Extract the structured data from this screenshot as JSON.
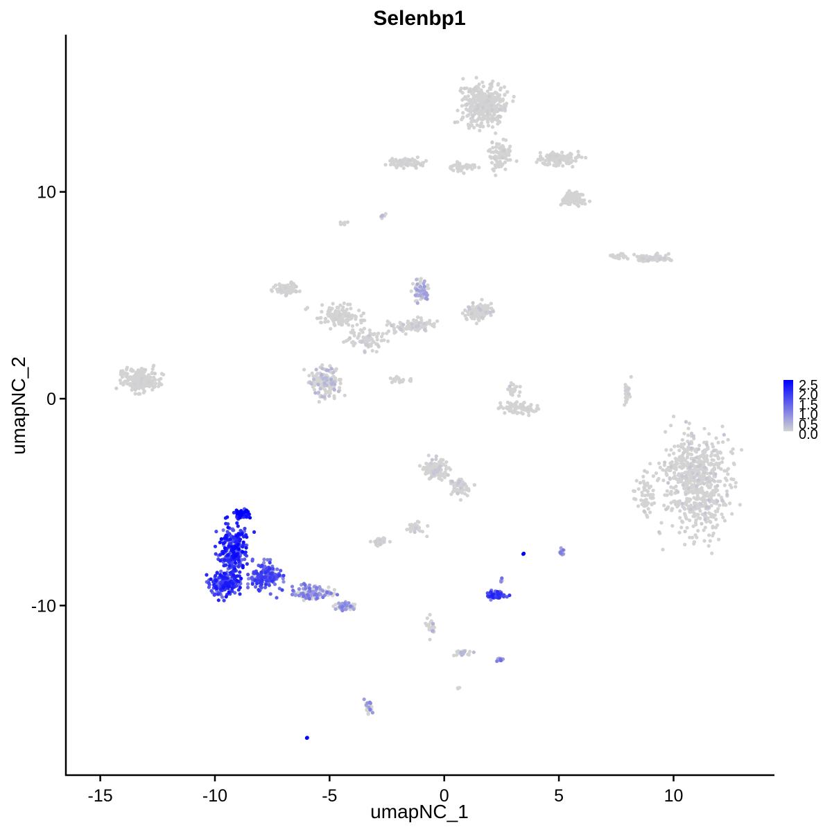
{
  "chart_data": {
    "type": "scatter",
    "title": "Selenbp1",
    "xlabel": "umapNC_1",
    "ylabel": "umapNC_2",
    "xlim": [
      -16.5,
      14.4
    ],
    "ylim": [
      -18.2,
      17.6
    ],
    "x_ticks": [
      -15,
      -10,
      -5,
      0,
      5,
      10
    ],
    "x_tick_labels": [
      "-15",
      "-10",
      "-5",
      "0",
      "5",
      "10"
    ],
    "y_ticks": [
      -10,
      0,
      10
    ],
    "y_tick_labels": [
      "-10",
      "0",
      "10"
    ],
    "grid": false,
    "legend": {
      "position": "right",
      "type": "colorbar",
      "range": [
        0,
        2.5
      ],
      "ticks": [
        "2.5",
        "2.0",
        "1.5",
        "1.0",
        "0.5",
        "0.0"
      ],
      "low_color": "#d3d3d3",
      "high_color": "#0000ff"
    },
    "clusters": [
      {
        "cx": 11.0,
        "cy": -4.0,
        "rx": 2.2,
        "ry": 3.8,
        "n": 650,
        "expr": 0.05
      },
      {
        "cx": 8.8,
        "cy": -4.5,
        "rx": 0.7,
        "ry": 1.8,
        "n": 60,
        "expr": 0.02
      },
      {
        "cx": 1.7,
        "cy": 14.2,
        "rx": 1.5,
        "ry": 1.5,
        "n": 380,
        "expr": 0.03
      },
      {
        "cx": 2.5,
        "cy": 11.8,
        "rx": 0.9,
        "ry": 1.2,
        "n": 90,
        "expr": 0.03
      },
      {
        "cx": 5.0,
        "cy": 11.6,
        "rx": 1.4,
        "ry": 0.55,
        "n": 110,
        "expr": 0.02
      },
      {
        "cx": 5.6,
        "cy": 9.7,
        "rx": 0.8,
        "ry": 0.45,
        "n": 90,
        "expr": 0.0
      },
      {
        "cx": -1.6,
        "cy": 11.4,
        "rx": 1.2,
        "ry": 0.3,
        "n": 90,
        "expr": 0.02
      },
      {
        "cx": 0.8,
        "cy": 11.2,
        "rx": 0.8,
        "ry": 0.3,
        "n": 50,
        "expr": 0.0
      },
      {
        "cx": 9.0,
        "cy": 6.8,
        "rx": 1.1,
        "ry": 0.3,
        "n": 90,
        "expr": 0.03
      },
      {
        "cx": 7.6,
        "cy": 6.9,
        "rx": 0.6,
        "ry": 0.2,
        "n": 25,
        "expr": 0.0
      },
      {
        "cx": -13.3,
        "cy": 0.9,
        "rx": 1.1,
        "ry": 0.9,
        "n": 220,
        "expr": 0.02
      },
      {
        "cx": -6.9,
        "cy": 5.3,
        "rx": 0.8,
        "ry": 0.45,
        "n": 70,
        "expr": 0.02
      },
      {
        "cx": -4.5,
        "cy": 4.0,
        "rx": 1.6,
        "ry": 0.8,
        "n": 120,
        "expr": 0.02
      },
      {
        "cx": -1.0,
        "cy": 5.2,
        "rx": 0.5,
        "ry": 0.9,
        "n": 70,
        "expr": 0.2
      },
      {
        "cx": 1.5,
        "cy": 4.2,
        "rx": 0.9,
        "ry": 0.6,
        "n": 110,
        "expr": 0.05
      },
      {
        "cx": -1.5,
        "cy": 3.5,
        "rx": 1.5,
        "ry": 0.5,
        "n": 90,
        "expr": 0.05
      },
      {
        "cx": -5.2,
        "cy": 0.8,
        "rx": 1.0,
        "ry": 1.2,
        "n": 140,
        "expr": 0.12
      },
      {
        "cx": -3.4,
        "cy": 2.8,
        "rx": 1.2,
        "ry": 0.8,
        "n": 80,
        "expr": 0.05
      },
      {
        "cx": 3.3,
        "cy": -0.4,
        "rx": 1.2,
        "ry": 0.5,
        "n": 90,
        "expr": 0.02
      },
      {
        "cx": 3.0,
        "cy": 0.5,
        "rx": 0.4,
        "ry": 0.5,
        "n": 20,
        "expr": 0.05
      },
      {
        "cx": -1.9,
        "cy": 0.9,
        "rx": 0.8,
        "ry": 0.2,
        "n": 25,
        "expr": 0.0
      },
      {
        "cx": 8.0,
        "cy": 0.2,
        "rx": 0.25,
        "ry": 0.8,
        "n": 30,
        "expr": 0.03
      },
      {
        "cx": -4.4,
        "cy": 8.5,
        "rx": 0.25,
        "ry": 0.2,
        "n": 10,
        "expr": 0.0
      },
      {
        "cx": -2.7,
        "cy": 8.8,
        "rx": 0.2,
        "ry": 0.15,
        "n": 8,
        "expr": 0.1
      },
      {
        "cx": -0.4,
        "cy": -3.4,
        "rx": 0.8,
        "ry": 0.8,
        "n": 110,
        "expr": 0.05
      },
      {
        "cx": 0.7,
        "cy": -4.3,
        "rx": 0.7,
        "ry": 0.7,
        "n": 50,
        "expr": 0.05
      },
      {
        "cx": -1.3,
        "cy": -6.2,
        "rx": 0.7,
        "ry": 0.4,
        "n": 30,
        "expr": 0.05
      },
      {
        "cx": -2.8,
        "cy": -6.9,
        "rx": 0.45,
        "ry": 0.25,
        "n": 35,
        "expr": 0.03
      },
      {
        "cx": -9.2,
        "cy": -7.3,
        "rx": 0.9,
        "ry": 1.8,
        "n": 260,
        "expr": 0.7
      },
      {
        "cx": -9.6,
        "cy": -9.0,
        "rx": 1.0,
        "ry": 0.8,
        "n": 200,
        "expr": 0.65
      },
      {
        "cx": -7.8,
        "cy": -8.6,
        "rx": 1.0,
        "ry": 1.0,
        "n": 180,
        "expr": 0.55
      },
      {
        "cx": -8.8,
        "cy": -5.6,
        "rx": 0.5,
        "ry": 0.35,
        "n": 60,
        "expr": 0.85
      },
      {
        "cx": -5.8,
        "cy": -9.4,
        "rx": 1.4,
        "ry": 0.55,
        "n": 110,
        "expr": 0.35
      },
      {
        "cx": -4.3,
        "cy": -10.1,
        "rx": 0.55,
        "ry": 0.3,
        "n": 40,
        "expr": 0.3
      },
      {
        "cx": 2.3,
        "cy": -9.5,
        "rx": 0.6,
        "ry": 0.3,
        "n": 60,
        "expr": 0.62
      },
      {
        "cx": 2.5,
        "cy": -8.8,
        "rx": 0.1,
        "ry": 0.2,
        "n": 6,
        "expr": 0.4
      },
      {
        "cx": 5.1,
        "cy": -7.4,
        "rx": 0.2,
        "ry": 0.3,
        "n": 12,
        "expr": 0.3
      },
      {
        "cx": 3.45,
        "cy": -7.5,
        "rx": 0.06,
        "ry": 0.08,
        "n": 4,
        "expr": 1.0
      },
      {
        "cx": 0.8,
        "cy": -12.3,
        "rx": 0.7,
        "ry": 0.2,
        "n": 20,
        "expr": 0.1
      },
      {
        "cx": 2.4,
        "cy": -12.6,
        "rx": 0.25,
        "ry": 0.15,
        "n": 12,
        "expr": 0.35
      },
      {
        "cx": -3.3,
        "cy": -14.9,
        "rx": 0.3,
        "ry": 0.5,
        "n": 25,
        "expr": 0.3
      },
      {
        "cx": -6.0,
        "cy": -16.4,
        "rx": 0.1,
        "ry": 0.06,
        "n": 4,
        "expr": 0.9
      },
      {
        "cx": -0.6,
        "cy": -11.0,
        "rx": 0.3,
        "ry": 0.8,
        "n": 25,
        "expr": 0.15
      },
      {
        "cx": 0.6,
        "cy": -14.0,
        "rx": 0.1,
        "ry": 0.1,
        "n": 3,
        "expr": 0.1
      }
    ]
  }
}
